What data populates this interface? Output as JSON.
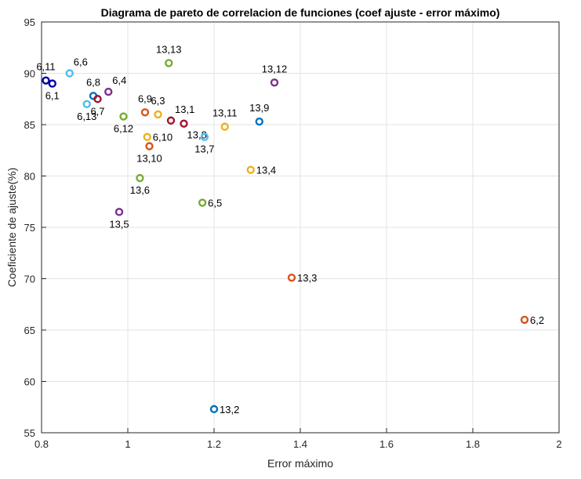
{
  "chart_data": {
    "type": "scatter",
    "title": "Diagrama de pareto de correlacion de funciones (coef ajuste - error máximo)",
    "xlabel": "Error máximo",
    "ylabel": "Coeficiente de ajuste(%)",
    "xlim": [
      0.8,
      2
    ],
    "ylim": [
      55,
      95
    ],
    "xticks": [
      "0.8",
      "1",
      "1.2",
      "1.4",
      "1.6",
      "1.8",
      "2"
    ],
    "yticks": [
      "55",
      "60",
      "65",
      "70",
      "75",
      "80",
      "85",
      "90",
      "95"
    ],
    "grid": true,
    "points": [
      {
        "label": "6,11",
        "x": 0.81,
        "y": 89.3,
        "color": "#0000a8",
        "label_pos": "above"
      },
      {
        "label": "6,1",
        "x": 0.825,
        "y": 89.0,
        "color": "#0000a8",
        "label_pos": "below"
      },
      {
        "label": "6,6",
        "x": 0.865,
        "y": 90.0,
        "color": "#4dbeee",
        "label_pos": "above-right"
      },
      {
        "label": "6,13",
        "x": 0.905,
        "y": 87.0,
        "color": "#4dbeee",
        "label_pos": "below"
      },
      {
        "label": "6,8",
        "x": 0.92,
        "y": 87.8,
        "color": "#0072bd",
        "label_pos": "above"
      },
      {
        "label": "6,7",
        "x": 0.93,
        "y": 87.5,
        "color": "#a2142f",
        "label_pos": "below"
      },
      {
        "label": "6,4",
        "x": 0.955,
        "y": 88.2,
        "color": "#7e2f8e",
        "label_pos": "above-right"
      },
      {
        "label": "6,12",
        "x": 0.99,
        "y": 85.8,
        "color": "#77ac30",
        "label_pos": "below"
      },
      {
        "label": "13,13",
        "x": 1.095,
        "y": 91.0,
        "color": "#77ac30",
        "label_pos": "above"
      },
      {
        "label": "6,9",
        "x": 1.04,
        "y": 86.2,
        "color": "#d95319",
        "label_pos": "above"
      },
      {
        "label": "6,3",
        "x": 1.07,
        "y": 86.0,
        "color": "#edb120",
        "label_pos": "above"
      },
      {
        "label": "13,1",
        "x": 1.1,
        "y": 85.4,
        "color": "#a2142f",
        "label_pos": "above-right"
      },
      {
        "label": "13,8",
        "x": 1.13,
        "y": 85.1,
        "color": "#a2142f",
        "label_pos": "below-right"
      },
      {
        "label": "6,10",
        "x": 1.045,
        "y": 83.8,
        "color": "#edb120",
        "label_pos": "right"
      },
      {
        "label": "13,10",
        "x": 1.05,
        "y": 82.9,
        "color": "#d95319",
        "label_pos": "below"
      },
      {
        "label": "13,7",
        "x": 1.178,
        "y": 83.8,
        "color": "#4dbeee",
        "label_pos": "below"
      },
      {
        "label": "13,11",
        "x": 1.225,
        "y": 84.8,
        "color": "#edb120",
        "label_pos": "above"
      },
      {
        "label": "13,9",
        "x": 1.305,
        "y": 85.3,
        "color": "#0072bd",
        "label_pos": "above"
      },
      {
        "label": "13,12",
        "x": 1.34,
        "y": 89.1,
        "color": "#7e2f8e",
        "label_pos": "above"
      },
      {
        "label": "13,6",
        "x": 1.028,
        "y": 79.8,
        "color": "#77ac30",
        "label_pos": "below"
      },
      {
        "label": "13,4",
        "x": 1.285,
        "y": 80.6,
        "color": "#edb120",
        "label_pos": "right"
      },
      {
        "label": "6,5",
        "x": 1.173,
        "y": 77.4,
        "color": "#77ac30",
        "label_pos": "right"
      },
      {
        "label": "13,5",
        "x": 0.98,
        "y": 76.5,
        "color": "#7e2f8e",
        "label_pos": "below"
      },
      {
        "label": "13,3",
        "x": 1.38,
        "y": 70.1,
        "color": "#d95319",
        "label_pos": "right"
      },
      {
        "label": "6,2",
        "x": 1.92,
        "y": 66.0,
        "color": "#d95319",
        "label_pos": "right"
      },
      {
        "label": "13,2",
        "x": 1.2,
        "y": 57.3,
        "color": "#0072bd",
        "label_pos": "right"
      }
    ]
  }
}
